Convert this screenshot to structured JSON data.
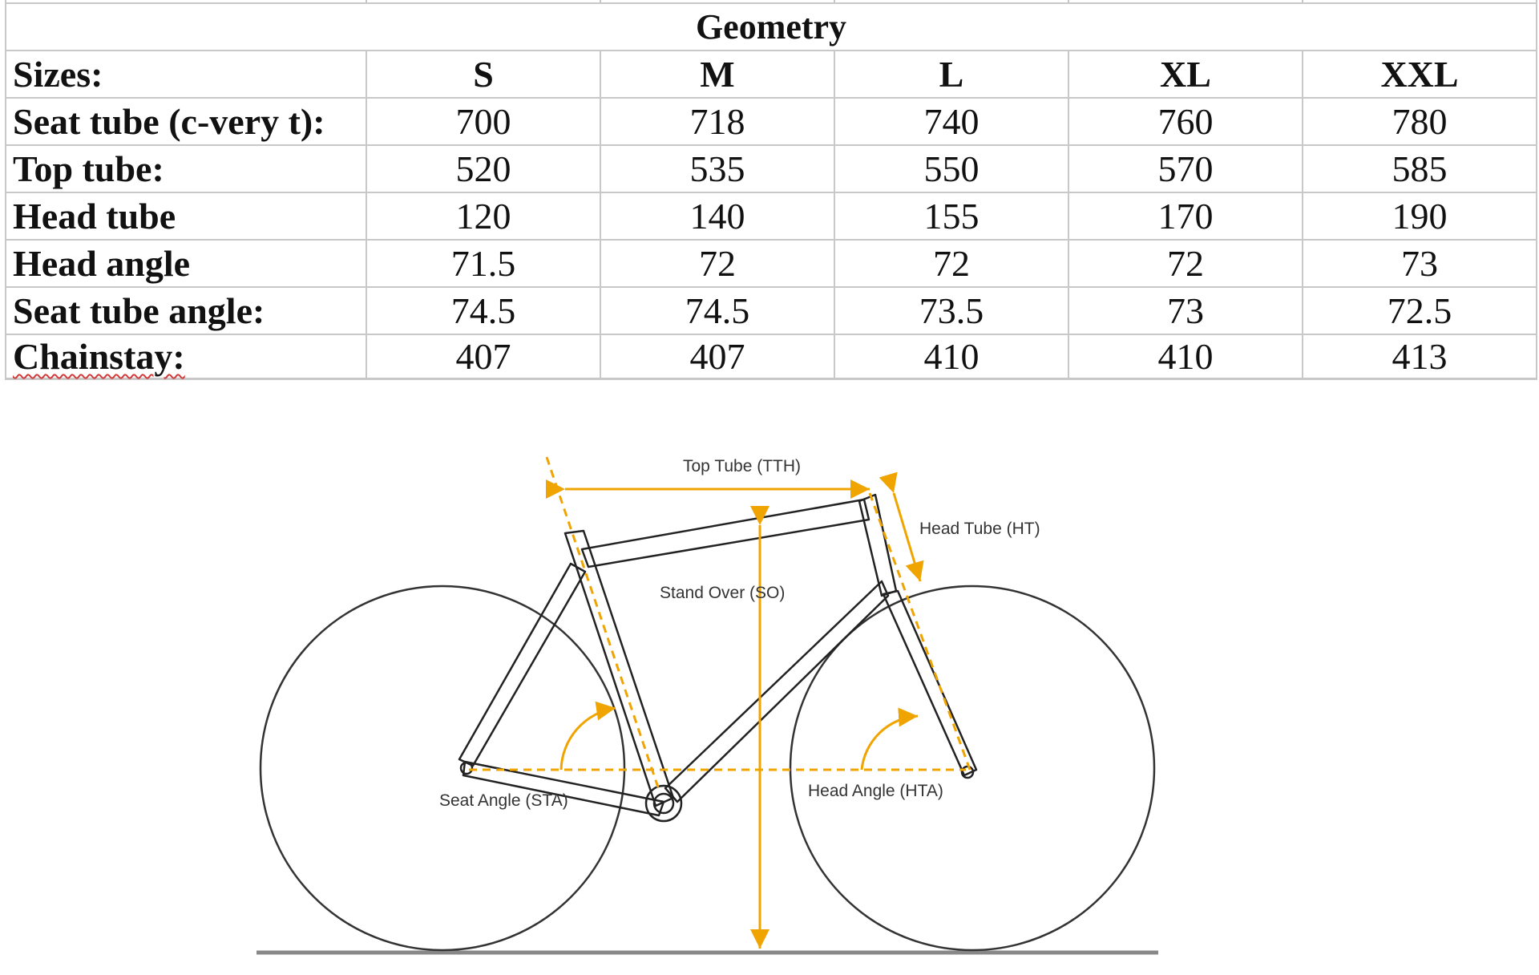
{
  "table": {
    "title": "Geometry",
    "sizes_label": "Sizes:",
    "sizes": [
      "S",
      "M",
      "L",
      "XL",
      "XXL"
    ],
    "rows": [
      {
        "label": "Seat tube (c-very t):",
        "values": [
          "700",
          "718",
          "740",
          "760",
          "780"
        ]
      },
      {
        "label": "Top tube:",
        "values": [
          "520",
          "535",
          "550",
          "570",
          "585"
        ]
      },
      {
        "label": "Head tube",
        "values": [
          "120",
          "140",
          "155",
          "170",
          "190"
        ]
      },
      {
        "label": "Head angle",
        "values": [
          "71.5",
          "72",
          "72",
          "72",
          "73"
        ]
      },
      {
        "label": "Seat tube angle:",
        "values": [
          "74.5",
          "74.5",
          "73.5",
          "73",
          "72.5"
        ]
      },
      {
        "label": "Chainstay:",
        "values": [
          "407",
          "407",
          "410",
          "410",
          "413"
        ]
      }
    ]
  },
  "diagram": {
    "labels": {
      "top_tube": "Top Tube (TTH)",
      "head_tube": "Head Tube (HT)",
      "stand_over": "Stand Over (SO)",
      "seat_angle": "Seat Angle (STA)",
      "head_angle": "Head Angle (HTA)"
    },
    "colors": {
      "frame": "#222222",
      "measure": "#f0a400",
      "ground": "#888888"
    }
  }
}
